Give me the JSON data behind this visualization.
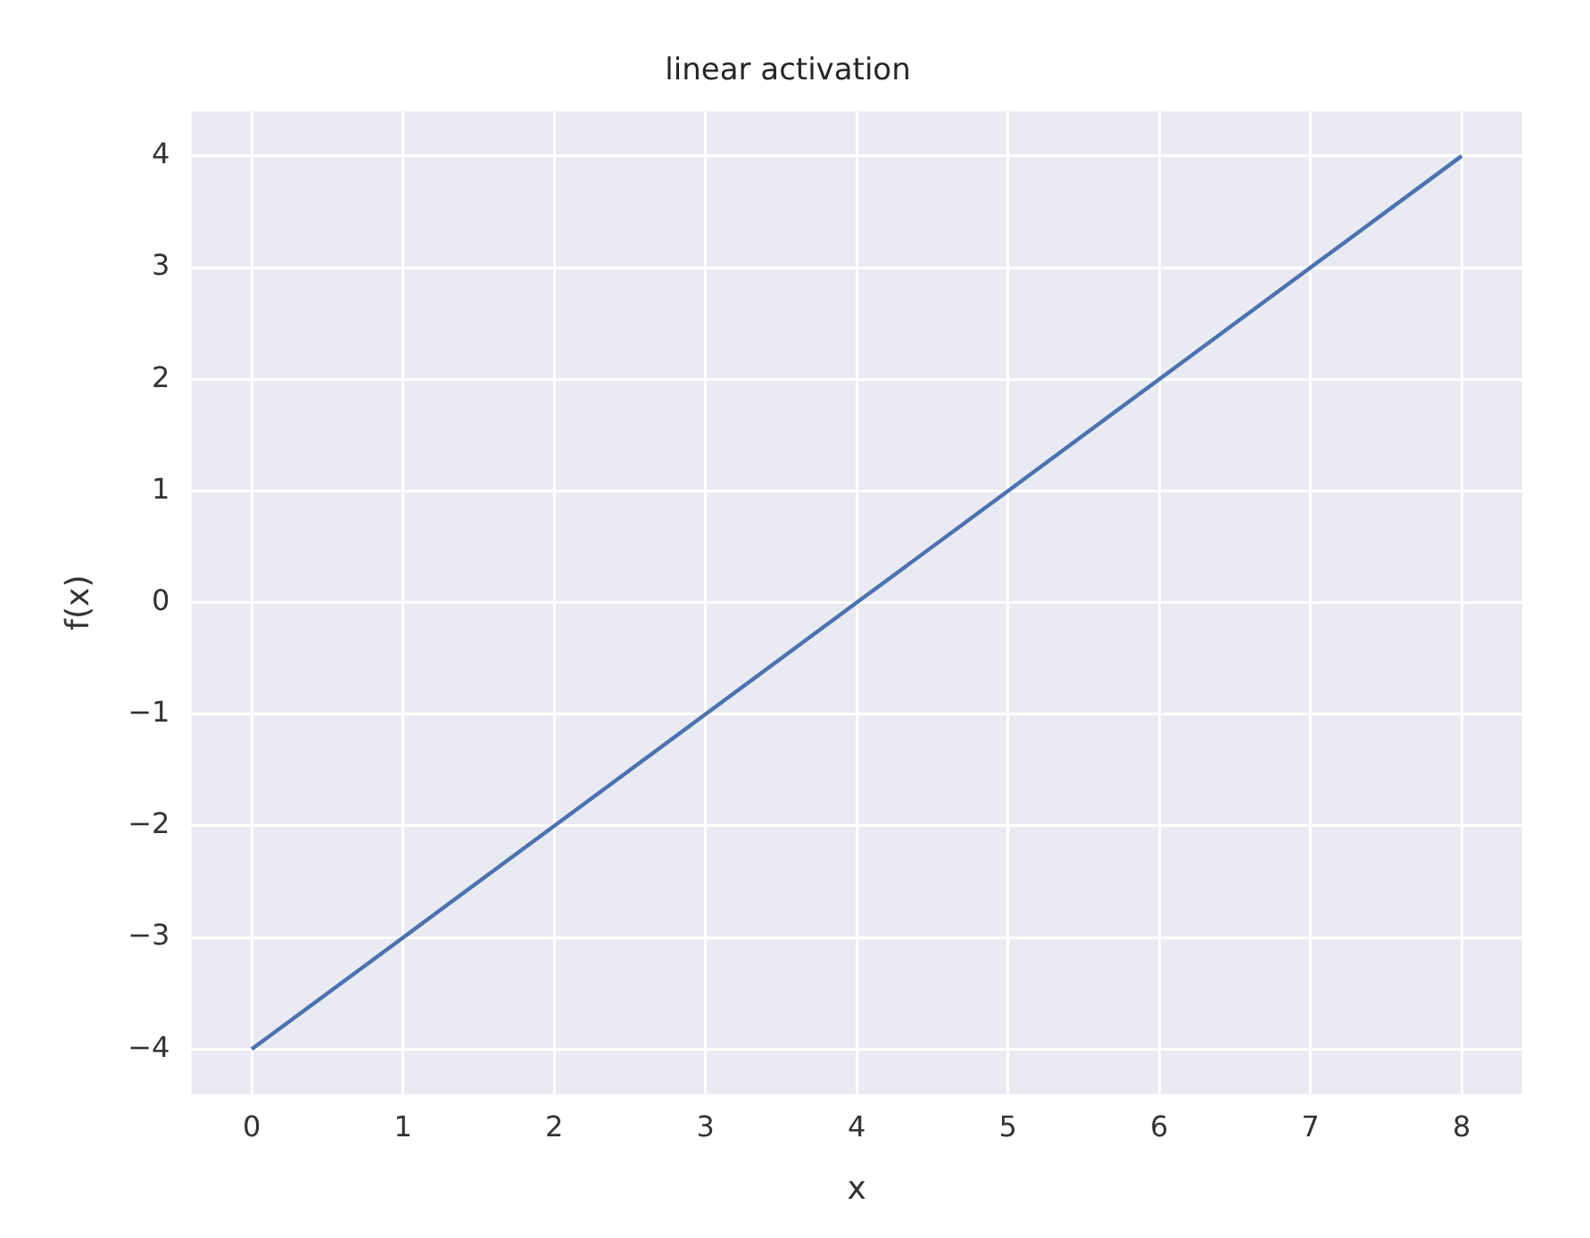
{
  "chart_data": {
    "type": "line",
    "title": "linear activation",
    "xlabel": "x",
    "ylabel": "f(x)",
    "x": [
      0,
      1,
      2,
      3,
      4,
      5,
      6,
      7,
      8
    ],
    "series": [
      {
        "color": "#4c72b0",
        "values": [
          -4,
          -3,
          -2,
          -1,
          0,
          1,
          2,
          3,
          4
        ]
      }
    ],
    "xlim": [
      -0.4,
      8.4
    ],
    "ylim": [
      -4.4,
      4.4
    ],
    "xticks": [
      0,
      1,
      2,
      3,
      4,
      5,
      6,
      7,
      8
    ],
    "yticks": [
      {
        "value": -4,
        "label": "−4"
      },
      {
        "value": -3,
        "label": "−3"
      },
      {
        "value": -2,
        "label": "−2"
      },
      {
        "value": -1,
        "label": "−1"
      },
      0,
      1,
      2,
      3,
      4
    ],
    "grid": true
  }
}
